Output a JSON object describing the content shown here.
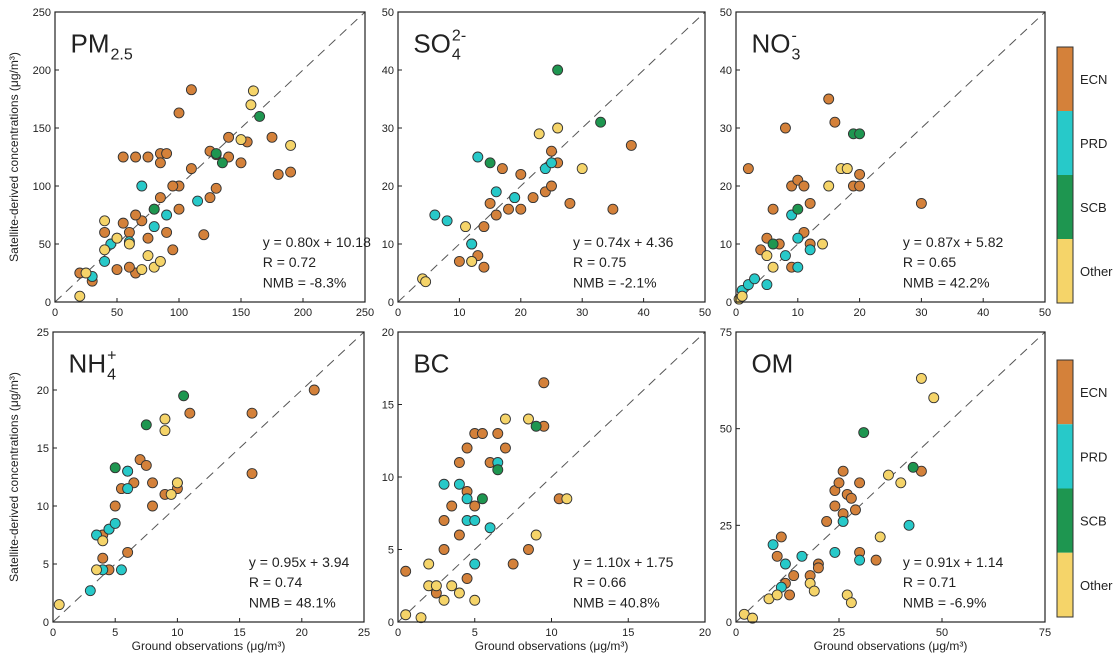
{
  "xlabel": "Ground observations (μg/m³)",
  "ylabel": "Satellite-derived concentrations (μg/m³)",
  "chart_data": [
    {
      "type": "scatter",
      "title": "PM",
      "title_subscript": "2.5",
      "xlim": [
        0,
        250
      ],
      "ylim": [
        0,
        250
      ],
      "xticks": [
        0,
        50,
        100,
        150,
        200,
        250
      ],
      "yticks": [
        0,
        50,
        100,
        150,
        200,
        250
      ],
      "annotations": [
        "y = 0.80x + 10.18",
        "R = 0.72",
        "NMB = -8.3%"
      ],
      "series": [
        {
          "name": "ECN",
          "color": "#d4813a",
          "x": [
            55,
            65,
            75,
            85,
            90,
            100,
            110,
            125,
            130,
            140,
            155,
            175,
            190,
            180,
            100,
            95,
            80,
            70,
            60,
            50,
            55,
            65,
            85,
            75,
            90,
            95,
            120,
            130,
            110,
            50,
            65,
            40,
            60,
            100,
            150,
            140,
            125,
            85,
            20,
            30
          ],
          "y": [
            125,
            125,
            125,
            128,
            128,
            163,
            183,
            130,
            127,
            125,
            138,
            142,
            112,
            110,
            100,
            100,
            80,
            70,
            60,
            55,
            68,
            75,
            90,
            55,
            60,
            45,
            58,
            98,
            115,
            28,
            25,
            60,
            30,
            80,
            120,
            142,
            90,
            120,
            25,
            18
          ]
        },
        {
          "name": "PRD",
          "color": "#27c9c9",
          "x": [
            40,
            30,
            60,
            70,
            90,
            115,
            80,
            45
          ],
          "y": [
            35,
            22,
            52,
            100,
            75,
            87,
            65,
            50
          ]
        },
        {
          "name": "SCB",
          "color": "#1e9650",
          "x": [
            130,
            165,
            135,
            80
          ],
          "y": [
            128,
            160,
            120,
            80
          ]
        },
        {
          "name": "Other",
          "color": "#f5d469",
          "x": [
            20,
            25,
            40,
            50,
            60,
            75,
            80,
            85,
            70,
            160,
            158,
            150,
            190,
            40
          ],
          "y": [
            5,
            25,
            70,
            55,
            50,
            40,
            30,
            35,
            28,
            182,
            170,
            140,
            135,
            45
          ]
        }
      ]
    },
    {
      "type": "scatter",
      "title": "SO",
      "title_subscript": "4",
      "title_superscript": "2-",
      "xlim": [
        0,
        50
      ],
      "ylim": [
        0,
        50
      ],
      "xticks": [
        0,
        10,
        20,
        30,
        40,
        50
      ],
      "yticks": [
        0,
        10,
        20,
        30,
        40,
        50
      ],
      "annotations": [
        "y = 0.74x + 4.36",
        "R = 0.75",
        "NMB = -2.1%"
      ],
      "series": [
        {
          "name": "ECN",
          "color": "#d4813a",
          "x": [
            10,
            12,
            13,
            14,
            15,
            16,
            18,
            19,
            20,
            22,
            24,
            25,
            25,
            26,
            28,
            35,
            38,
            14,
            12,
            20,
            17
          ],
          "y": [
            7,
            10,
            8,
            13,
            17,
            15,
            16,
            18,
            22,
            18,
            19,
            20,
            26,
            24,
            17,
            16,
            27,
            6,
            7,
            16,
            23
          ]
        },
        {
          "name": "PRD",
          "color": "#27c9c9",
          "x": [
            6,
            8,
            12,
            13,
            16,
            24,
            25,
            19
          ],
          "y": [
            15,
            14,
            10,
            25,
            19,
            23,
            24,
            18
          ]
        },
        {
          "name": "SCB",
          "color": "#1e9650",
          "x": [
            15,
            26,
            33
          ],
          "y": [
            24,
            40,
            31
          ]
        },
        {
          "name": "Other",
          "color": "#f5d469",
          "x": [
            4,
            4.5,
            11,
            12,
            23,
            26,
            30
          ],
          "y": [
            4,
            3.5,
            13,
            7,
            29,
            30,
            23
          ]
        }
      ]
    },
    {
      "type": "scatter",
      "title": "NO",
      "title_subscript": "3",
      "title_superscript": "-",
      "xlim": [
        0,
        50
      ],
      "ylim": [
        0,
        50
      ],
      "xticks": [
        0,
        10,
        20,
        30,
        40,
        50
      ],
      "yticks": [
        0,
        10,
        20,
        30,
        40,
        50
      ],
      "annotations": [
        "y = 0.87x + 5.82",
        "R = 0.65",
        "NMB = 42.2%"
      ],
      "series": [
        {
          "name": "ECN",
          "color": "#d4813a",
          "x": [
            2,
            5,
            6,
            8,
            9,
            10,
            11,
            11,
            12,
            15,
            16,
            18,
            19,
            20,
            20,
            30,
            9,
            12,
            7,
            4
          ],
          "y": [
            23,
            11,
            16,
            30,
            20,
            21,
            20,
            12,
            17,
            35,
            31,
            23,
            20,
            22,
            20,
            17,
            6,
            10,
            10,
            9
          ]
        },
        {
          "name": "PRD",
          "color": "#27c9c9",
          "x": [
            1,
            2,
            3,
            5,
            8,
            9,
            10,
            12,
            10
          ],
          "y": [
            2,
            3,
            4,
            3,
            8,
            15,
            11,
            9,
            6
          ]
        },
        {
          "name": "SCB",
          "color": "#1e9650",
          "x": [
            6,
            10,
            19,
            20
          ],
          "y": [
            10,
            16,
            29,
            29
          ]
        },
        {
          "name": "Other",
          "color": "#f5d469",
          "x": [
            0.5,
            1,
            5,
            6,
            15,
            14,
            17,
            18
          ],
          "y": [
            0.5,
            1,
            8,
            6,
            20,
            10,
            23,
            23
          ]
        }
      ]
    },
    {
      "type": "scatter",
      "title": "NH",
      "title_subscript": "4",
      "title_superscript": "+",
      "xlim": [
        0,
        25
      ],
      "ylim": [
        0,
        25
      ],
      "xticks": [
        0,
        5,
        10,
        15,
        20,
        25
      ],
      "yticks": [
        0,
        5,
        10,
        15,
        20,
        25
      ],
      "annotations": [
        "y = 0.95x + 3.94",
        "R = 0.74",
        "NMB = 48.1%"
      ],
      "series": [
        {
          "name": "ECN",
          "color": "#d4813a",
          "x": [
            4,
            4,
            4.5,
            5,
            5.5,
            6,
            6.5,
            7,
            7.5,
            8,
            9,
            10,
            10,
            11,
            16,
            16,
            21,
            4.5,
            6,
            8
          ],
          "y": [
            5.5,
            7.5,
            8,
            10,
            11.5,
            13,
            12,
            14,
            13.5,
            10,
            11,
            12,
            11.5,
            18,
            18,
            12.8,
            20,
            4.5,
            6,
            12
          ]
        },
        {
          "name": "PRD",
          "color": "#27c9c9",
          "x": [
            3,
            3.5,
            4,
            4.5,
            5,
            5.5,
            6,
            6
          ],
          "y": [
            2.7,
            7.5,
            4.5,
            8,
            8.5,
            4.5,
            13,
            11.5
          ]
        },
        {
          "name": "SCB",
          "color": "#1e9650",
          "x": [
            5,
            7.5,
            10.5
          ],
          "y": [
            13.3,
            17,
            19.5
          ]
        },
        {
          "name": "Other",
          "color": "#f5d469",
          "x": [
            0.5,
            4,
            9,
            9,
            9.5,
            10,
            3.5
          ],
          "y": [
            1.5,
            7,
            17.5,
            16.5,
            11,
            12,
            4.5
          ]
        }
      ]
    },
    {
      "type": "scatter",
      "title": "BC",
      "xlim": [
        0,
        20
      ],
      "ylim": [
        0,
        20
      ],
      "xticks": [
        0,
        5,
        10,
        15,
        20
      ],
      "yticks": [
        0,
        5,
        10,
        15,
        20
      ],
      "annotations": [
        "y = 1.10x + 1.75",
        "R = 0.66",
        "NMB = 40.8%"
      ],
      "series": [
        {
          "name": "ECN",
          "color": "#d4813a",
          "x": [
            0.5,
            2.5,
            3,
            3,
            3.5,
            4,
            4,
            4.5,
            4.5,
            5,
            5.5,
            6,
            6.5,
            7,
            7.5,
            8.5,
            9.5,
            9.5,
            10.5,
            5,
            4.5
          ],
          "y": [
            3.5,
            2,
            5,
            7,
            8,
            6,
            11,
            9,
            12,
            13,
            13,
            11,
            13,
            12,
            4,
            5,
            16.5,
            13.5,
            8.5,
            8,
            3
          ]
        },
        {
          "name": "PRD",
          "color": "#27c9c9",
          "x": [
            3,
            4,
            4.5,
            4.5,
            5,
            6,
            5,
            6.5
          ],
          "y": [
            9.5,
            9.5,
            8.5,
            7,
            7,
            6.5,
            4,
            11
          ]
        },
        {
          "name": "SCB",
          "color": "#1e9650",
          "x": [
            5.5,
            6.5,
            9
          ],
          "y": [
            8.5,
            10.5,
            13.5
          ]
        },
        {
          "name": "Other",
          "color": "#f5d469",
          "x": [
            0.5,
            1.5,
            2,
            2.5,
            3,
            3.5,
            4,
            5,
            2,
            7,
            8.5,
            11,
            9
          ],
          "y": [
            0.5,
            0.3,
            2.5,
            2.5,
            1.5,
            2.5,
            2,
            1.5,
            4,
            14,
            14,
            8.5,
            6
          ]
        }
      ]
    },
    {
      "type": "scatter",
      "title": "OM",
      "xlim": [
        0,
        75
      ],
      "ylim": [
        0,
        75
      ],
      "xticks": [
        0,
        25,
        50,
        75
      ],
      "yticks": [
        0,
        25,
        50,
        75
      ],
      "annotations": [
        "y = 0.91x + 1.14",
        "R = 0.71",
        "NMB = -6.9%"
      ],
      "series": [
        {
          "name": "ECN",
          "color": "#d4813a",
          "x": [
            10,
            11,
            12,
            14,
            18,
            20,
            22,
            24,
            24,
            25,
            26,
            27,
            28,
            29,
            30,
            30,
            34,
            45,
            26,
            20,
            13
          ],
          "y": [
            17,
            22,
            10,
            12,
            12,
            15,
            26,
            30,
            34,
            36,
            39,
            33,
            32,
            29,
            36,
            18,
            16,
            39,
            28,
            14,
            7
          ]
        },
        {
          "name": "PRD",
          "color": "#27c9c9",
          "x": [
            9,
            11,
            12,
            16,
            24,
            26,
            30,
            42
          ],
          "y": [
            20,
            9,
            15,
            17,
            18,
            26,
            16,
            25
          ]
        },
        {
          "name": "SCB",
          "color": "#1e9650",
          "x": [
            31,
            43
          ],
          "y": [
            49,
            40
          ]
        },
        {
          "name": "Other",
          "color": "#f5d469",
          "x": [
            2,
            4,
            8,
            10,
            18,
            19,
            27,
            28,
            37,
            40,
            45,
            48,
            35
          ],
          "y": [
            2,
            1,
            6,
            7,
            10,
            8,
            7,
            5,
            38,
            36,
            63,
            58,
            22
          ]
        }
      ]
    }
  ]
}
